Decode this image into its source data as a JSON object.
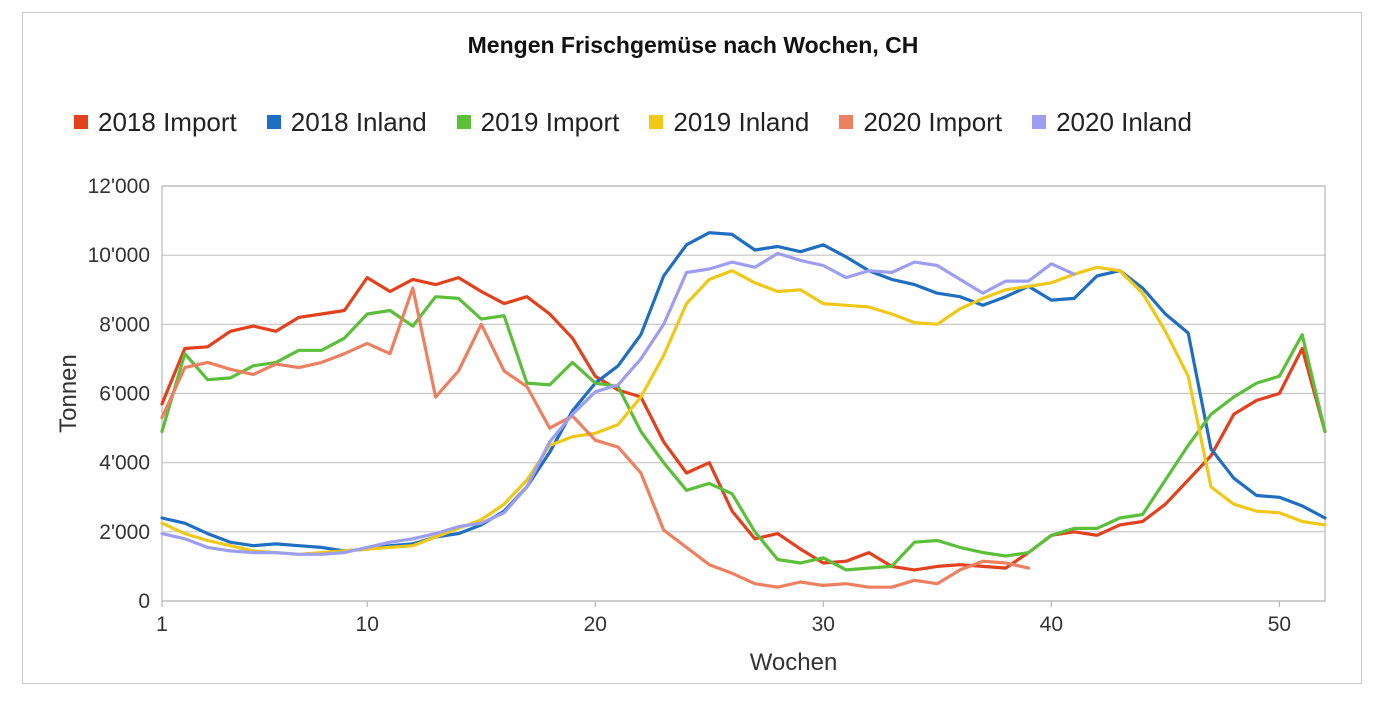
{
  "chart_data": {
    "type": "line",
    "title": "Mengen Frischgemüse nach Wochen, CH",
    "xlabel": "Wochen",
    "ylabel": "Tonnen",
    "xlim": [
      1,
      52
    ],
    "ylim": [
      0,
      12000
    ],
    "x_ticks": [
      1,
      10,
      20,
      30,
      40,
      50
    ],
    "x_tick_labels": [
      "1",
      "10",
      "20",
      "30",
      "40",
      "50"
    ],
    "y_ticks": [
      0,
      2000,
      4000,
      6000,
      8000,
      10000,
      12000
    ],
    "y_tick_labels": [
      "0",
      "2'000",
      "4'000",
      "6'000",
      "8'000",
      "10'000",
      "12'000"
    ],
    "grid": "horizontal",
    "legend_position": "top",
    "series": [
      {
        "name": "2018 Import",
        "color": "#e3401d",
        "x": [
          1,
          2,
          3,
          4,
          5,
          6,
          7,
          8,
          9,
          10,
          11,
          12,
          13,
          14,
          15,
          16,
          17,
          18,
          19,
          20,
          21,
          22,
          23,
          24,
          25,
          26,
          27,
          28,
          29,
          30,
          31,
          32,
          33,
          34,
          35,
          36,
          37,
          38,
          39,
          40,
          41,
          42,
          43,
          44,
          45,
          46,
          47,
          48,
          49,
          50,
          51,
          52
        ],
        "values": [
          5700,
          7300,
          7350,
          7800,
          7950,
          7800,
          8200,
          8300,
          8400,
          9350,
          8950,
          9300,
          9150,
          9350,
          8950,
          8600,
          8800,
          8300,
          7600,
          6500,
          6100,
          5900,
          4600,
          3700,
          4000,
          2600,
          1800,
          1950,
          1500,
          1100,
          1150,
          1400,
          1000,
          900,
          1000,
          1050,
          1000,
          950,
          1400,
          1900,
          2000,
          1900,
          2200,
          2300,
          2800,
          3500,
          4200,
          5400,
          5800,
          6000,
          7300,
          4900
        ]
      },
      {
        "name": "2018 Inland",
        "color": "#1e6fc1",
        "x": [
          1,
          2,
          3,
          4,
          5,
          6,
          7,
          8,
          9,
          10,
          11,
          12,
          13,
          14,
          15,
          16,
          17,
          18,
          19,
          20,
          21,
          22,
          23,
          24,
          25,
          26,
          27,
          28,
          29,
          30,
          31,
          32,
          33,
          34,
          35,
          36,
          37,
          38,
          39,
          40,
          41,
          42,
          43,
          44,
          45,
          46,
          47,
          48,
          49,
          50,
          51,
          52
        ],
        "values": [
          2400,
          2250,
          1950,
          1700,
          1600,
          1650,
          1600,
          1550,
          1450,
          1500,
          1600,
          1650,
          1850,
          1950,
          2200,
          2600,
          3300,
          4300,
          5500,
          6300,
          6800,
          7700,
          9400,
          10300,
          10650,
          10600,
          10150,
          10250,
          10100,
          10300,
          9950,
          9550,
          9300,
          9150,
          8900,
          8800,
          8550,
          8800,
          9100,
          8700,
          8750,
          9400,
          9550,
          9050,
          8300,
          7750,
          4400,
          3550,
          3050,
          3000,
          2750,
          2400
        ]
      },
      {
        "name": "2019 Import",
        "color": "#5bbf3a",
        "x": [
          1,
          2,
          3,
          4,
          5,
          6,
          7,
          8,
          9,
          10,
          11,
          12,
          13,
          14,
          15,
          16,
          17,
          18,
          19,
          20,
          21,
          22,
          23,
          24,
          25,
          26,
          27,
          28,
          29,
          30,
          31,
          32,
          33,
          34,
          35,
          36,
          37,
          38,
          39,
          40,
          41,
          42,
          43,
          44,
          45,
          46,
          47,
          48,
          49,
          50,
          51,
          52
        ],
        "values": [
          4900,
          7150,
          6400,
          6450,
          6800,
          6900,
          7250,
          7250,
          7600,
          8300,
          8400,
          7950,
          8800,
          8750,
          8150,
          8250,
          6300,
          6250,
          6900,
          6300,
          6200,
          4900,
          4000,
          3200,
          3400,
          3100,
          2000,
          1200,
          1100,
          1250,
          900,
          950,
          1000,
          1700,
          1750,
          1550,
          1400,
          1300,
          1400,
          1900,
          2100,
          2100,
          2400,
          2500,
          3500,
          4500,
          5400,
          5900,
          6300,
          6500,
          7700,
          4900
        ]
      },
      {
        "name": "2019 Inland",
        "color": "#f0c818",
        "x": [
          1,
          2,
          3,
          4,
          5,
          6,
          7,
          8,
          9,
          10,
          11,
          12,
          13,
          14,
          15,
          16,
          17,
          18,
          19,
          20,
          21,
          22,
          23,
          24,
          25,
          26,
          27,
          28,
          29,
          30,
          31,
          32,
          33,
          34,
          35,
          36,
          37,
          38,
          39,
          40,
          41,
          42,
          43,
          44,
          45,
          46,
          47,
          48,
          49,
          50,
          51,
          52
        ],
        "values": [
          2250,
          1950,
          1750,
          1600,
          1450,
          1400,
          1350,
          1400,
          1450,
          1500,
          1550,
          1600,
          1850,
          2100,
          2350,
          2800,
          3500,
          4500,
          4750,
          4850,
          5100,
          5900,
          7100,
          8600,
          9300,
          9550,
          9200,
          8950,
          9000,
          8600,
          8550,
          8500,
          8300,
          8050,
          8000,
          8450,
          8750,
          9000,
          9100,
          9200,
          9450,
          9650,
          9550,
          8900,
          7800,
          6500,
          3300,
          2800,
          2600,
          2550,
          2300,
          2200
        ]
      },
      {
        "name": "2020 Import",
        "color": "#ec8060",
        "x": [
          1,
          2,
          3,
          4,
          5,
          6,
          7,
          8,
          9,
          10,
          11,
          12,
          13,
          14,
          15,
          16,
          17,
          18,
          19,
          20,
          21,
          22,
          23,
          24,
          25,
          26,
          27,
          28,
          29,
          30,
          31,
          32,
          33,
          34,
          35,
          36,
          37,
          38,
          39
        ],
        "values": [
          5300,
          6750,
          6900,
          6700,
          6550,
          6850,
          6750,
          6900,
          7150,
          7450,
          7150,
          9050,
          5900,
          6650,
          8000,
          6650,
          6200,
          5000,
          5350,
          4650,
          4450,
          3700,
          2050,
          1550,
          1050,
          800,
          500,
          400,
          550,
          450,
          500,
          400,
          400,
          600,
          500,
          900,
          1150,
          1100,
          950
        ]
      },
      {
        "name": "2020 Inland",
        "color": "#9e9ef0",
        "x": [
          1,
          2,
          3,
          4,
          5,
          6,
          7,
          8,
          9,
          10,
          11,
          12,
          13,
          14,
          15,
          16,
          17,
          18,
          19,
          20,
          21,
          22,
          23,
          24,
          25,
          26,
          27,
          28,
          29,
          30,
          31,
          32,
          33,
          34,
          35,
          36,
          37,
          38,
          39,
          40,
          41
        ],
        "values": [
          1950,
          1800,
          1550,
          1450,
          1400,
          1400,
          1350,
          1350,
          1400,
          1550,
          1700,
          1800,
          1950,
          2150,
          2250,
          2550,
          3300,
          4600,
          5400,
          6050,
          6250,
          7000,
          8000,
          9500,
          9600,
          9800,
          9650,
          10050,
          9850,
          9700,
          9350,
          9550,
          9500,
          9800,
          9700,
          9300,
          8900,
          9250,
          9250,
          9750,
          9450
        ]
      }
    ]
  }
}
